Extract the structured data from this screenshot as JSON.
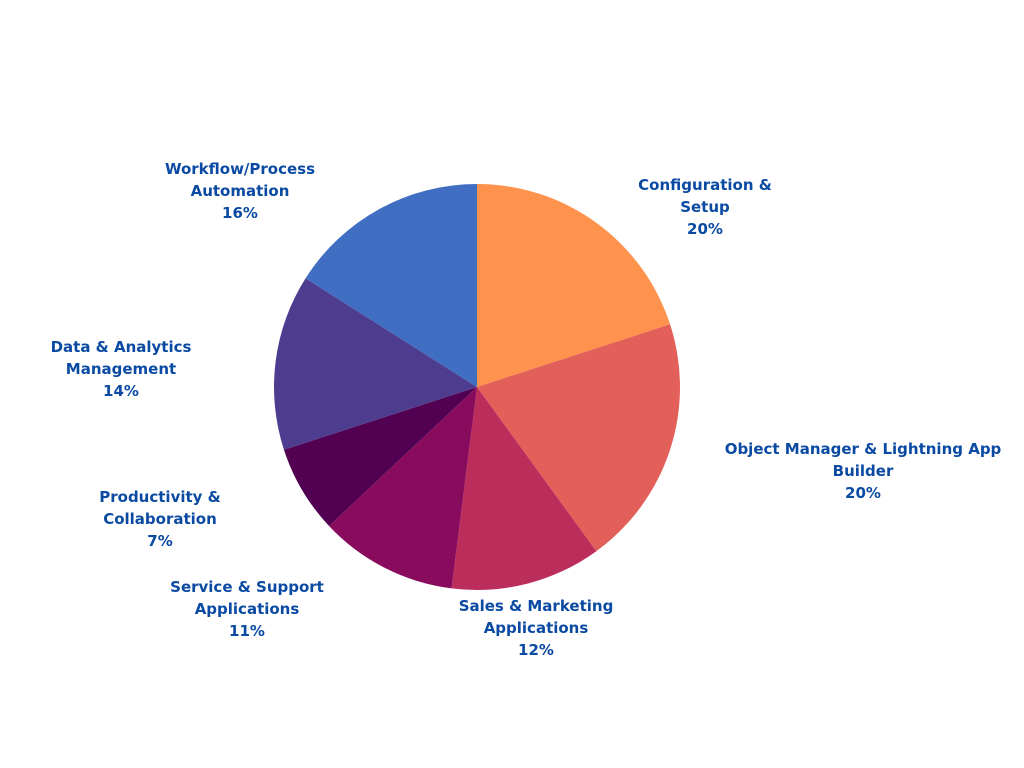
{
  "chart_data": {
    "type": "pie",
    "start_angle_deg": 0,
    "direction": "clockwise",
    "slices": [
      {
        "label_lines": [
          "Configuration &",
          "Setup"
        ],
        "percent_label": "20%",
        "value": 20,
        "color": "#ff924c"
      },
      {
        "label_lines": [
          "Object Manager & Lightning App",
          "Builder"
        ],
        "percent_label": "20%",
        "value": 20,
        "color": "#e35f5a"
      },
      {
        "label_lines": [
          "Sales & Marketing",
          "Applications"
        ],
        "percent_label": "12%",
        "value": 12,
        "color": "#bb2e5c"
      },
      {
        "label_lines": [
          "Service & Support",
          "Applications"
        ],
        "percent_label": "11%",
        "value": 11,
        "color": "#880b5e"
      },
      {
        "label_lines": [
          "Productivity &",
          "Collaboration"
        ],
        "percent_label": "7%",
        "value": 7,
        "color": "#510052"
      },
      {
        "label_lines": [
          "Data & Analytics",
          "Management"
        ],
        "percent_label": "14%",
        "value": 14,
        "color": "#4e3d8f"
      },
      {
        "label_lines": [
          "Workflow/Process",
          "Automation"
        ],
        "percent_label": "16%",
        "value": 16,
        "color": "#406ec2"
      }
    ],
    "label_color": "#0b4aa2",
    "legend": "none"
  }
}
